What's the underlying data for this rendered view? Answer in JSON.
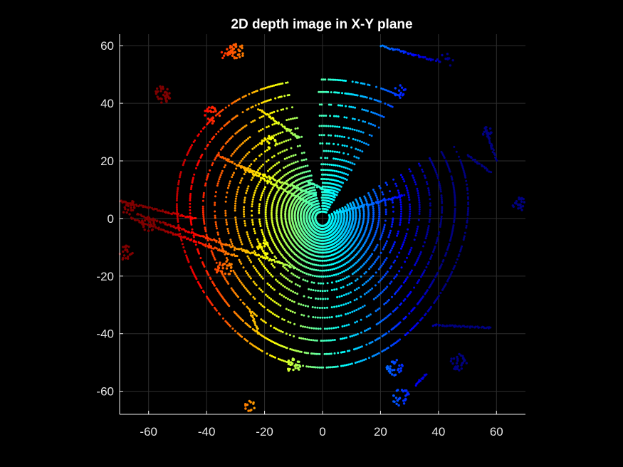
{
  "chart_data": {
    "type": "scatter",
    "title": "2D depth image in X-Y plane",
    "xlabel": "",
    "ylabel": "",
    "xlim": [
      -70,
      70
    ],
    "ylim": [
      -68,
      64
    ],
    "xticks": [
      -60,
      -40,
      -20,
      0,
      20,
      40,
      60
    ],
    "yticks": [
      60,
      40,
      20,
      0,
      -20,
      -40,
      -60
    ],
    "xtick_labels": [
      "-60",
      "-40",
      "-20",
      "0",
      "20",
      "40",
      "60"
    ],
    "ytick_labels": [
      "60",
      "40",
      "20",
      "0",
      "-20",
      "-40",
      "-60"
    ],
    "grid": true,
    "background": "#000000",
    "colormap": "jet",
    "color_meaning": "depth (distance from sensor at origin)",
    "sensor_origin": [
      0,
      0
    ],
    "scan_rings": {
      "radii": [
        2.5,
        3.5,
        4.5,
        5.5,
        6.5,
        7.5,
        8.5,
        9.5,
        10.5,
        11.5,
        12.8,
        14.2,
        15.8,
        17.5,
        19.5,
        21.8,
        24.3,
        27.0,
        30.0,
        33.3,
        37.0,
        41.0,
        45.5,
        50.0
      ],
      "gap_sectors_deg": [
        [
          30,
          58
        ],
        [
          92,
          104
        ]
      ]
    },
    "segments": [
      {
        "x1": -64,
        "y1": 1.5,
        "x2": -10,
        "y2": -17
      },
      {
        "x1": -36,
        "y1": 22,
        "x2": -4,
        "y2": 5
      },
      {
        "x1": -66,
        "y1": 0,
        "x2": -30,
        "y2": -13
      },
      {
        "x1": -28,
        "y1": 18,
        "x2": -2,
        "y2": 8
      },
      {
        "x1": -5,
        "y1": 12.5,
        "x2": 4,
        "y2": 8.5
      },
      {
        "x1": 5,
        "y1": 2,
        "x2": 28,
        "y2": 8
      },
      {
        "x1": 38,
        "y1": -37,
        "x2": 58,
        "y2": -38
      },
      {
        "x1": -70,
        "y1": 6,
        "x2": -44,
        "y2": 0
      },
      {
        "x1": -22,
        "y1": 38,
        "x2": -8,
        "y2": 28
      },
      {
        "x1": 50,
        "y1": 22,
        "x2": 58,
        "y2": 16
      },
      {
        "x1": 56,
        "y1": 32,
        "x2": 60,
        "y2": 20
      },
      {
        "x1": -25,
        "y1": -32,
        "x2": -22,
        "y2": -40
      },
      {
        "x1": 32,
        "y1": -58,
        "x2": 36,
        "y2": -54
      },
      {
        "x1": 20,
        "y1": 60,
        "x2": 38,
        "y2": 55
      }
    ],
    "clusters": [
      {
        "x": -30,
        "y": 58,
        "r": 3,
        "n": 34
      },
      {
        "x": -55,
        "y": 43,
        "r": 3,
        "n": 32
      },
      {
        "x": -38,
        "y": 36,
        "r": 3,
        "n": 26
      },
      {
        "x": -67,
        "y": 4,
        "r": 2.6,
        "n": 22
      },
      {
        "x": -60,
        "y": -2,
        "r": 2.6,
        "n": 22
      },
      {
        "x": -34,
        "y": -17,
        "r": 3,
        "n": 26
      },
      {
        "x": -20,
        "y": -10,
        "r": 2.5,
        "n": 20
      },
      {
        "x": -10,
        "y": -51,
        "r": 2.5,
        "n": 24
      },
      {
        "x": 25,
        "y": -52,
        "r": 3,
        "n": 30
      },
      {
        "x": 47,
        "y": -50,
        "r": 3,
        "n": 30
      },
      {
        "x": 27,
        "y": -62,
        "r": 3,
        "n": 28
      },
      {
        "x": 68,
        "y": 5,
        "r": 2.5,
        "n": 24
      },
      {
        "x": 57,
        "y": 30,
        "r": 2,
        "n": 14
      },
      {
        "x": 27,
        "y": 44,
        "r": 2.5,
        "n": 14
      },
      {
        "x": 42,
        "y": 55,
        "r": 3,
        "n": 12
      },
      {
        "x": -68,
        "y": -12,
        "r": 2.6,
        "n": 20
      },
      {
        "x": -18,
        "y": 26,
        "r": 3,
        "n": 16
      },
      {
        "x": -33,
        "y": 57,
        "r": 2,
        "n": 12
      },
      {
        "x": -25,
        "y": -65,
        "r": 2,
        "n": 12
      }
    ]
  }
}
